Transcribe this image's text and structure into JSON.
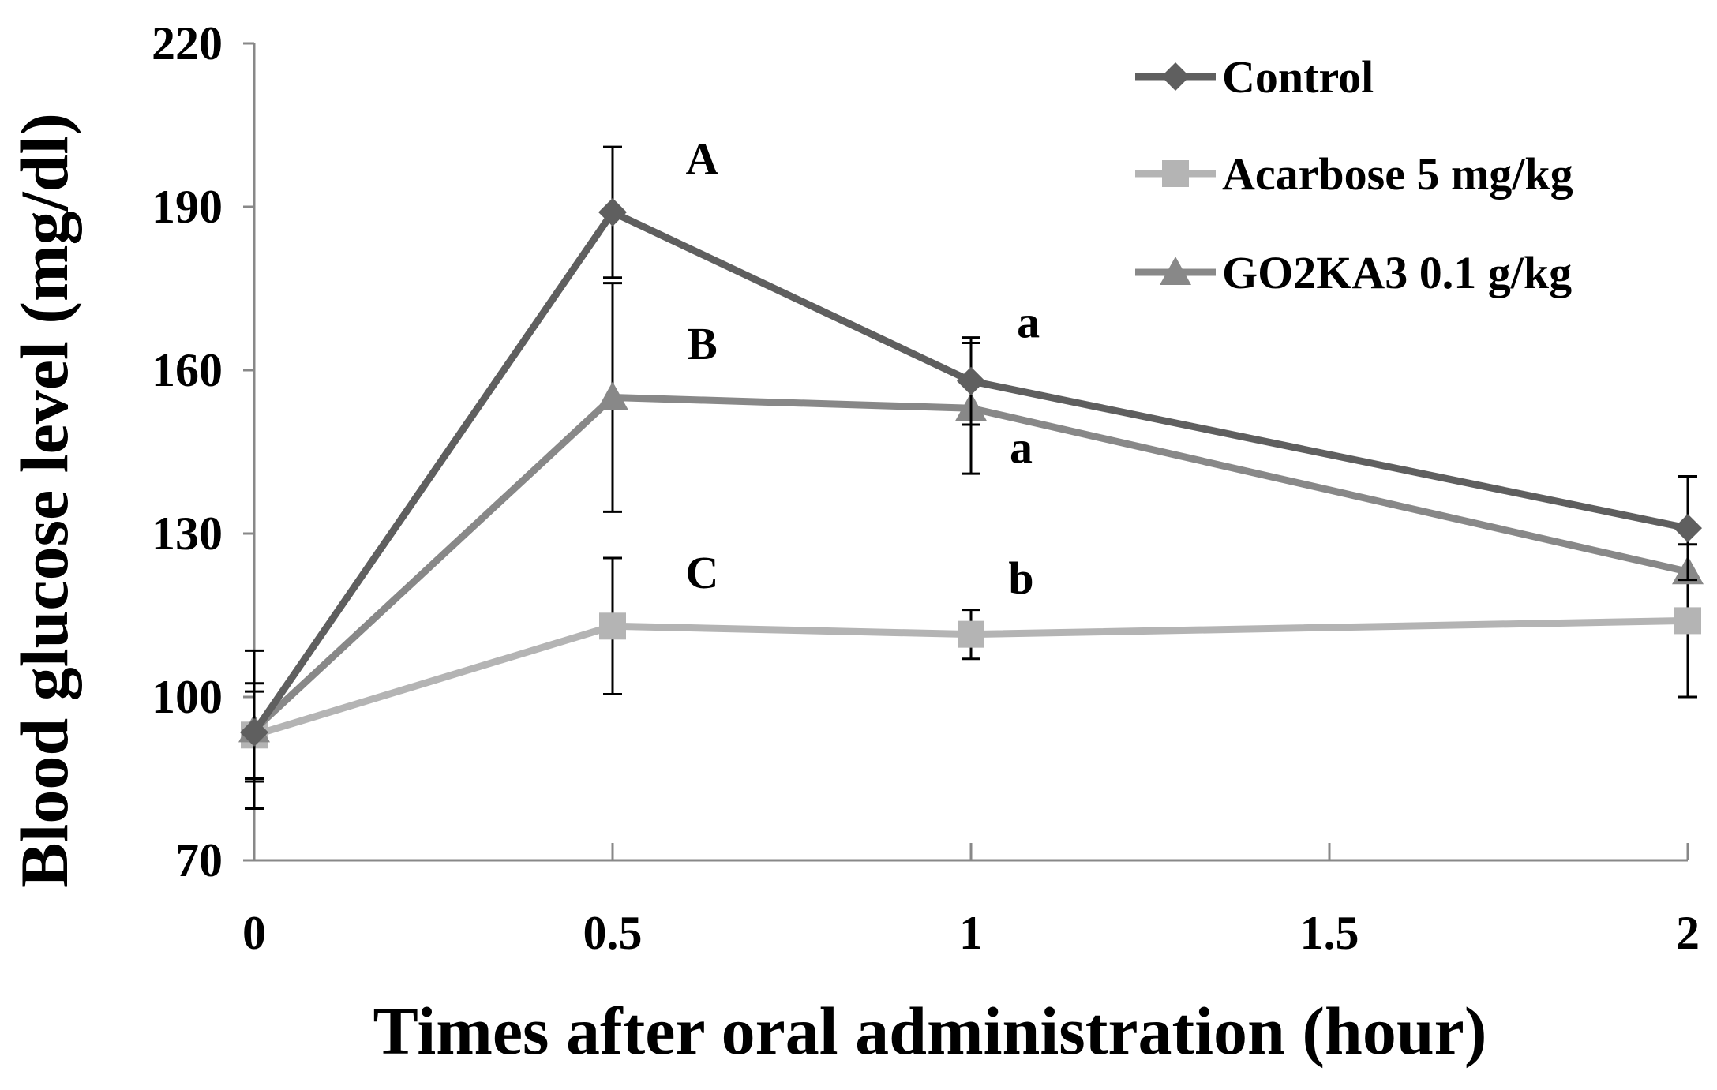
{
  "chart_data": {
    "type": "line",
    "xlabel": "Times after oral administration (hour)",
    "ylabel": "Blood glucose level (mg/dl)",
    "xlim": [
      0,
      2
    ],
    "ylim": [
      70,
      220
    ],
    "xticks": [
      0,
      0.5,
      1,
      1.5,
      2
    ],
    "xtick_labels": [
      "0",
      "0.5",
      "1",
      "1.5",
      "2"
    ],
    "yticks": [
      70,
      100,
      130,
      160,
      190,
      220
    ],
    "ytick_labels": [
      "70",
      "100",
      "130",
      "160",
      "190",
      "220"
    ],
    "grid": false,
    "legend_position": "top-right",
    "series": [
      {
        "name": "Control",
        "marker": "diamond",
        "color": "#5f5f5f",
        "x": [
          0,
          0.5,
          1,
          2
        ],
        "y": [
          93.5,
          189,
          158,
          131
        ],
        "error": [
          9,
          12,
          8,
          9.5
        ]
      },
      {
        "name": "Acarbose 5 mg/kg",
        "marker": "square",
        "color": "#b4b4b4",
        "x": [
          0,
          0.5,
          1,
          2
        ],
        "y": [
          93,
          113,
          111.5,
          114
        ],
        "error": [
          8,
          12.5,
          4.5,
          14
        ]
      },
      {
        "name": "GO2KA3 0.1 g/kg",
        "marker": "triangle",
        "color": "#888888",
        "x": [
          0,
          0.5,
          1,
          2
        ],
        "y": [
          94,
          155,
          153,
          123
        ],
        "error": [
          14.5,
          21,
          12,
          0
        ]
      }
    ],
    "annotations": [
      {
        "text": "A",
        "x": 0.625,
        "y": 196
      },
      {
        "text": "B",
        "x": 0.625,
        "y": 162
      },
      {
        "text": "C",
        "x": 0.625,
        "y": 120
      },
      {
        "text": "a",
        "x": 1.08,
        "y": 166
      },
      {
        "text": "a",
        "x": 1.07,
        "y": 143
      },
      {
        "text": "b",
        "x": 1.07,
        "y": 119
      }
    ]
  }
}
